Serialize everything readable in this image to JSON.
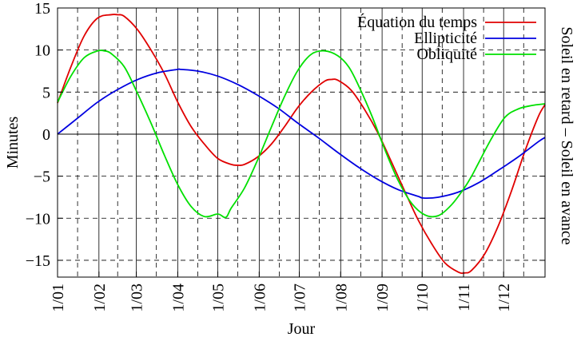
{
  "chart_data": {
    "type": "line",
    "title": "",
    "xlabel": "Jour",
    "ylabel": "Minutes",
    "y2label": "Soleil en retard – Soleil en avance",
    "ylim": [
      -17,
      15
    ],
    "yticks": [
      15,
      10,
      5,
      0,
      -5,
      -10,
      -15
    ],
    "xlim_days": [
      0,
      365
    ],
    "x_month_ticks": [
      {
        "label": "1/01",
        "day": 0
      },
      {
        "label": "1/02",
        "day": 31
      },
      {
        "label": "1/03",
        "day": 59
      },
      {
        "label": "1/04",
        "day": 90
      },
      {
        "label": "1/05",
        "day": 120
      },
      {
        "label": "1/06",
        "day": 151
      },
      {
        "label": "1/07",
        "day": 181
      },
      {
        "label": "1/08",
        "day": 212
      },
      {
        "label": "1/09",
        "day": 243
      },
      {
        "label": "1/10",
        "day": 273
      },
      {
        "label": "1/11",
        "day": 304
      },
      {
        "label": "1/12",
        "day": 334
      }
    ],
    "minor_grid_days": [
      15,
      45,
      74,
      105,
      135,
      166,
      196,
      227,
      258,
      288,
      319,
      349
    ],
    "grid": true,
    "legend_position": "top-right",
    "series": [
      {
        "name": "Équation du temps",
        "color": "#e00000",
        "x": [
          0,
          10,
          20,
          30,
          40,
          45,
          50,
          60,
          70,
          80,
          90,
          100,
          110,
          120,
          130,
          135,
          140,
          150,
          160,
          170,
          180,
          190,
          200,
          205,
          210,
          220,
          230,
          240,
          250,
          260,
          270,
          280,
          290,
          300,
          305,
          310,
          320,
          330,
          340,
          350,
          360,
          365
        ],
        "y": [
          3.7,
          8.0,
          11.7,
          13.8,
          14.2,
          14.2,
          14.0,
          12.4,
          10.0,
          7.2,
          3.8,
          0.9,
          -1.2,
          -2.9,
          -3.6,
          -3.7,
          -3.6,
          -2.7,
          -1.2,
          0.9,
          3.2,
          5.0,
          6.3,
          6.5,
          6.4,
          5.2,
          2.9,
          0.1,
          -3.3,
          -6.8,
          -10.2,
          -13.0,
          -15.3,
          -16.4,
          -16.5,
          -16.2,
          -14.2,
          -10.9,
          -6.7,
          -2.0,
          2.1,
          3.5
        ]
      },
      {
        "name": "Ellipticité",
        "color": "#0000e0",
        "x": [
          0,
          15,
          30,
          45,
          60,
          75,
          90,
          92,
          105,
          120,
          135,
          150,
          165,
          180,
          195,
          210,
          225,
          240,
          255,
          270,
          274,
          285,
          300,
          315,
          330,
          345,
          360,
          365
        ],
        "y": [
          0.0,
          1.9,
          3.8,
          5.3,
          6.5,
          7.3,
          7.7,
          7.7,
          7.5,
          6.9,
          5.9,
          4.6,
          3.1,
          1.3,
          -0.4,
          -2.2,
          -3.9,
          -5.4,
          -6.6,
          -7.4,
          -7.6,
          -7.5,
          -6.9,
          -5.8,
          -4.3,
          -2.7,
          -0.9,
          -0.4
        ]
      },
      {
        "name": "Obliquité",
        "color": "#00e000",
        "x": [
          0,
          10,
          20,
          30,
          35,
          40,
          50,
          60,
          70,
          80,
          90,
          100,
          110,
          120,
          126,
          130,
          140,
          150,
          160,
          170,
          180,
          190,
          200,
          210,
          218,
          225,
          235,
          245,
          255,
          265,
          275,
          285,
          295,
          305,
          310,
          315,
          325,
          335,
          345,
          355,
          365
        ],
        "y": [
          3.8,
          6.9,
          9.1,
          9.9,
          9.9,
          9.6,
          8.0,
          4.8,
          1.3,
          -2.5,
          -6.0,
          -8.6,
          -9.8,
          -9.5,
          -9.9,
          -8.8,
          -6.4,
          -3.0,
          0.8,
          4.5,
          7.6,
          9.5,
          9.9,
          9.3,
          8.0,
          5.9,
          2.3,
          -1.8,
          -5.5,
          -8.2,
          -9.6,
          -9.7,
          -8.4,
          -6.3,
          -5.0,
          -3.5,
          -0.5,
          2.0,
          3.0,
          3.4,
          3.6
        ]
      }
    ]
  }
}
